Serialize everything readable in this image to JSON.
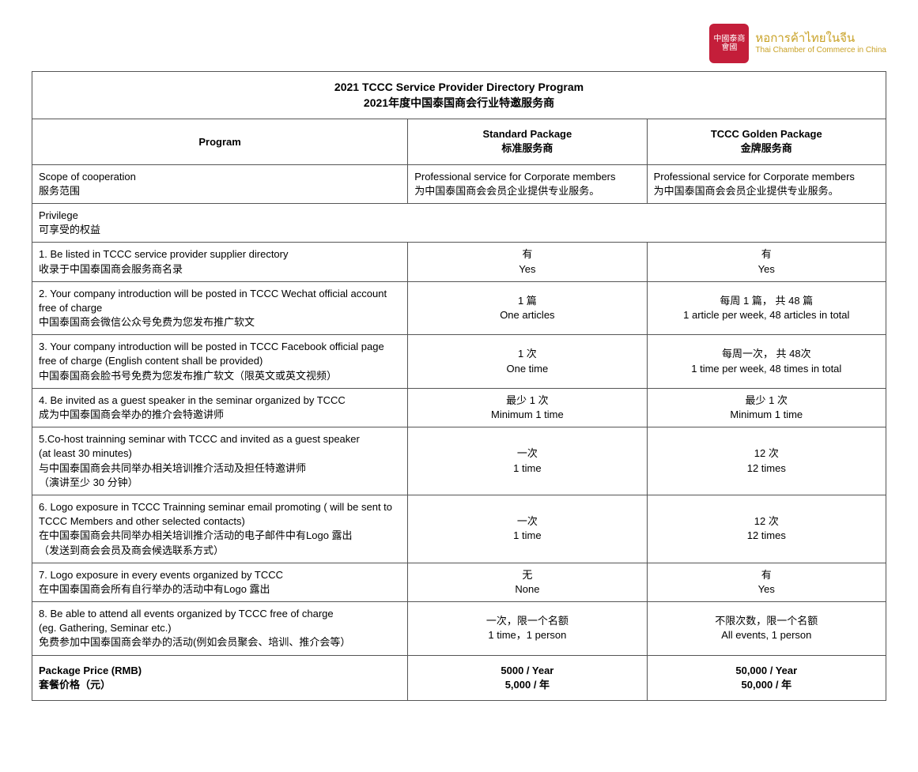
{
  "logo": {
    "seal_text": "中國泰商會國",
    "thai": "หอการค้าไทยในจีน",
    "en": "Thai Chamber of Commerce in China"
  },
  "title": {
    "en": "2021 TCCC Service Provider Directory Program",
    "cn": "2021年度中国泰国商会行业特邀服务商"
  },
  "headers": {
    "program": "Program",
    "standard_en": "Standard Package",
    "standard_cn": "标准服务商",
    "golden_en": "TCCC Golden Package",
    "golden_cn": "金牌服务商"
  },
  "scope": {
    "label_en": "Scope of cooperation",
    "label_cn": "服务范围",
    "std_en": "Professional service for Corporate members",
    "std_cn": "为中国泰国商会会员企业提供专业服务。",
    "gold_en": "Professional service for Corporate members",
    "gold_cn": "为中国泰国商会会员企业提供专业服务。"
  },
  "privilege": {
    "label_en": "Privilege",
    "label_cn": "可享受的权益"
  },
  "rows": [
    {
      "label_en": "1. Be listed in TCCC service provider supplier directory",
      "label_cn": "收录于中国泰国商会服务商名录",
      "std_cn": "有",
      "std_en": "Yes",
      "gold_cn": "有",
      "gold_en": "Yes"
    },
    {
      "label_en": "2. Your company  introduction will be posted in TCCC Wechat official account free of charge",
      "label_cn": "中国泰国商会微信公众号免费为您发布推广软文",
      "std_cn": "1 篇",
      "std_en": "One articles",
      "gold_cn": "每周 1 篇， 共 48 篇",
      "gold_en": "1 article per week, 48 articles in total"
    },
    {
      "label_en": "3. Your company  introduction will be posted in TCCC Facebook official page free of charge  (English content shall be provided)",
      "label_cn": "中国泰国商会脸书号免费为您发布推广软文（限英文或英文视频）",
      "std_cn": "1 次",
      "std_en": "One time",
      "gold_cn": "每周一次， 共 48次",
      "gold_en": "1 time per week, 48 times in total"
    },
    {
      "label_en": "4. Be invited as a guest speaker in the seminar organized by TCCC",
      "label_cn": "成为中国泰国商会举办的推介会特邀讲师",
      "std_cn": "最少 1 次",
      "std_en": "Minimum 1 time",
      "gold_cn": "最少 1 次",
      "gold_en": "Minimum 1 time"
    },
    {
      "label_en": "5.Co-host trainning seminar with TCCC and invited as a guest speaker",
      "label_en2": "(at least 30 minutes)",
      "label_cn": "与中国泰国商会共同举办相关培训推介活动及担任特邀讲师",
      "label_cn2": "（演讲至少 30 分钟）",
      "std_cn": "一次",
      "std_en": "1 time",
      "gold_cn": "12 次",
      "gold_en": "12 times"
    },
    {
      "label_en": "6. Logo exposure in  TCCC Trainning seminar email promoting ( will be sent to TCCC Members and other selected contacts)",
      "label_cn": "在中国泰国商会共同举办相关培训推介活动的电子邮件中有Logo 露出",
      "label_cn2": "（发送到商会会员及商会候选联系方式）",
      "std_cn": "一次",
      "std_en": "1 time",
      "gold_cn": "12 次",
      "gold_en": "12 times"
    },
    {
      "label_en": "7. Logo exposure in every events organized by TCCC",
      "label_cn": "在中国泰国商会所有自行举办的活动中有Logo 露出",
      "std_cn": "无",
      "std_en": "None",
      "gold_cn": "有",
      "gold_en": "Yes"
    },
    {
      "label_en": "8. Be able to attend all events organized by TCCC free of charge",
      "label_en2": "(eg. Gathering, Seminar etc.)",
      "label_cn": "免费参加中国泰国商会举办的活动(例如会员聚会、培训、推介会等）",
      "std_cn": "一次，限一个名额",
      "std_en": "1 time，1 person",
      "gold_cn": "不限次数，限一个名额",
      "gold_en": "All events, 1 person"
    }
  ],
  "price": {
    "label_en": "Package Price (RMB)",
    "label_cn": "套餐价格（元）",
    "std_en": "5000 / Year",
    "std_cn": "5,000 / 年",
    "gold_en": "50,000 / Year",
    "gold_cn": "50,000 / 年"
  }
}
